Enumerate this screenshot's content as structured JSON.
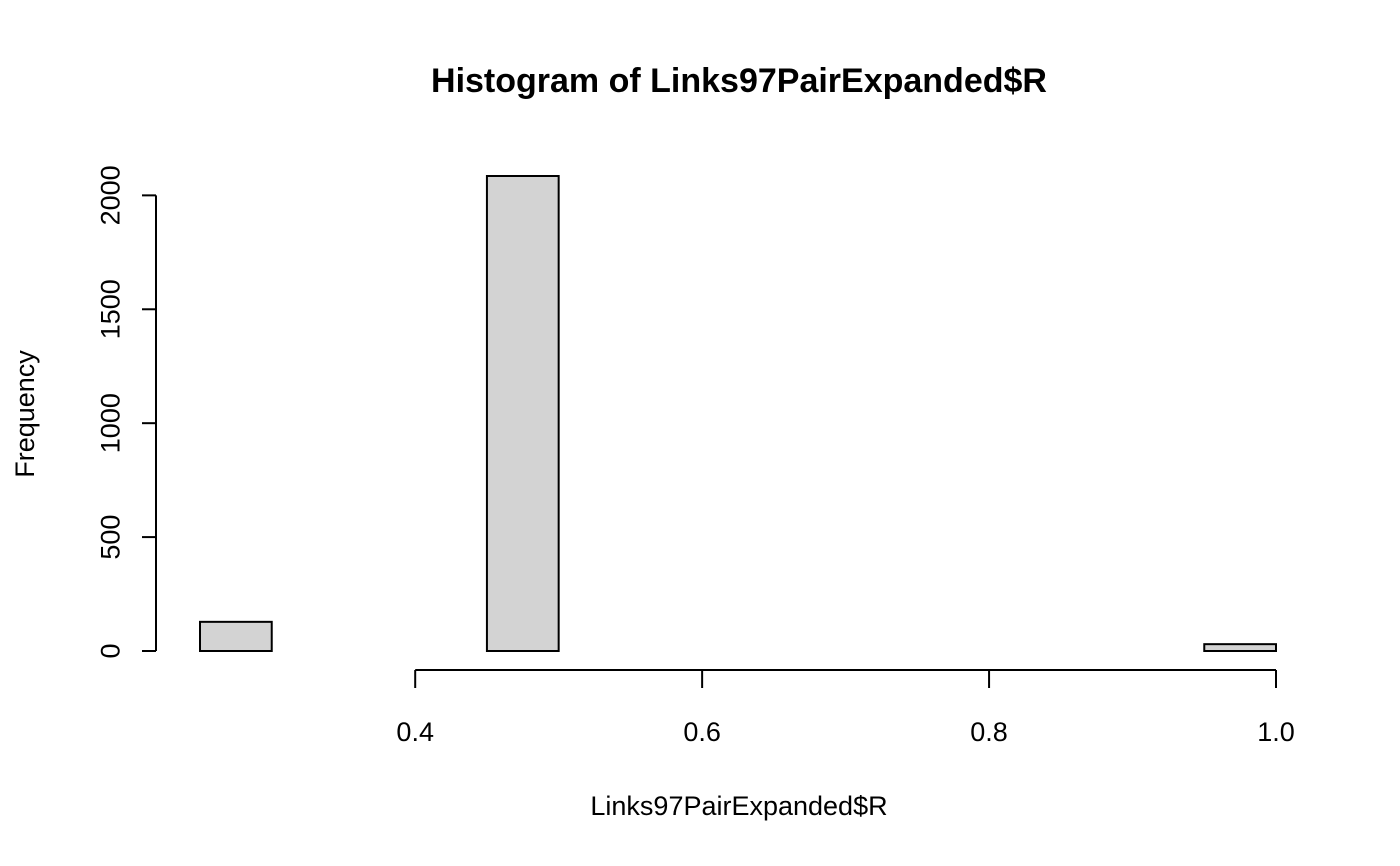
{
  "chart_data": {
    "type": "bar",
    "title": "Histogram of Links97PairExpanded$R",
    "xlabel": "Links97PairExpanded$R",
    "ylabel": "Frequency",
    "bins": [
      {
        "start": 0.25,
        "end": 0.3,
        "count": 128
      },
      {
        "start": 0.3,
        "end": 0.35,
        "count": 0
      },
      {
        "start": 0.35,
        "end": 0.4,
        "count": 0
      },
      {
        "start": 0.4,
        "end": 0.45,
        "count": 0
      },
      {
        "start": 0.45,
        "end": 0.5,
        "count": 2085
      },
      {
        "start": 0.5,
        "end": 0.55,
        "count": 0
      },
      {
        "start": 0.55,
        "end": 0.6,
        "count": 0
      },
      {
        "start": 0.6,
        "end": 0.65,
        "count": 0
      },
      {
        "start": 0.65,
        "end": 0.7,
        "count": 0
      },
      {
        "start": 0.7,
        "end": 0.75,
        "count": 0
      },
      {
        "start": 0.75,
        "end": 0.8,
        "count": 0
      },
      {
        "start": 0.8,
        "end": 0.85,
        "count": 0
      },
      {
        "start": 0.85,
        "end": 0.9,
        "count": 0
      },
      {
        "start": 0.9,
        "end": 0.95,
        "count": 0
      },
      {
        "start": 0.95,
        "end": 1.0,
        "count": 30
      }
    ],
    "xticks": [
      "0.4",
      "0.6",
      "0.8",
      "1.0"
    ],
    "xtick_values": [
      0.4,
      0.6,
      0.8,
      1.0
    ],
    "yticks": [
      "0",
      "500",
      "1000",
      "1500",
      "2000"
    ],
    "ytick_values": [
      0,
      500,
      1000,
      1500,
      2000
    ],
    "xlim": [
      0.25,
      1.0
    ],
    "ylim": [
      0,
      2085
    ],
    "grid": false,
    "legend": "none"
  }
}
